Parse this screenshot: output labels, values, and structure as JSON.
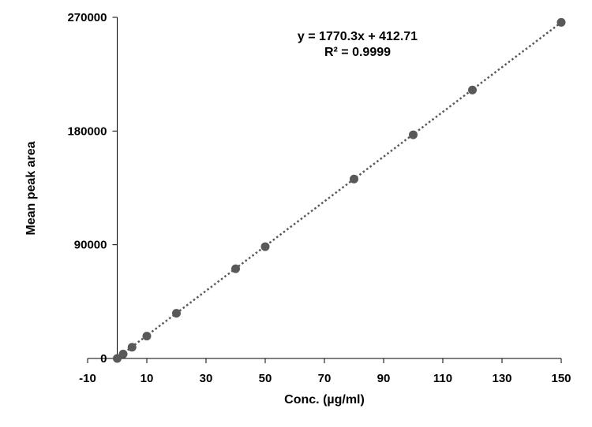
{
  "chart_data": {
    "type": "scatter",
    "xlabel": "Conc. (µg/ml)",
    "ylabel": "Mean peak area",
    "xlim": [
      -10,
      150
    ],
    "ylim": [
      0,
      270000
    ],
    "x_ticks": [
      -10,
      10,
      30,
      50,
      70,
      90,
      110,
      130,
      150
    ],
    "x_tick_labels": [
      "-10",
      "10",
      "30",
      "50",
      "70",
      "90",
      "110",
      "130",
      "150"
    ],
    "y_ticks": [
      0,
      90000,
      180000,
      270000
    ],
    "y_tick_labels": [
      "0",
      "90000",
      "180000",
      "270000"
    ],
    "grid": false,
    "legend": "none",
    "points": [
      {
        "x": 0,
        "y": 0
      },
      {
        "x": 2,
        "y": 3500
      },
      {
        "x": 5,
        "y": 8900
      },
      {
        "x": 10,
        "y": 17700
      },
      {
        "x": 20,
        "y": 35800
      },
      {
        "x": 40,
        "y": 71000
      },
      {
        "x": 50,
        "y": 88500
      },
      {
        "x": 80,
        "y": 142000
      },
      {
        "x": 100,
        "y": 177000
      },
      {
        "x": 120,
        "y": 212500
      },
      {
        "x": 150,
        "y": 266000
      }
    ],
    "trendline": {
      "slope": 1770.3,
      "intercept": 412.71,
      "style": "dotted"
    },
    "annotations": {
      "equation": "y = 1770.3x + 412.71",
      "r_squared": "R² = 0.9999"
    },
    "colors": {
      "marker": "#595959",
      "trendline": "#595959",
      "axis": "#000000"
    }
  }
}
